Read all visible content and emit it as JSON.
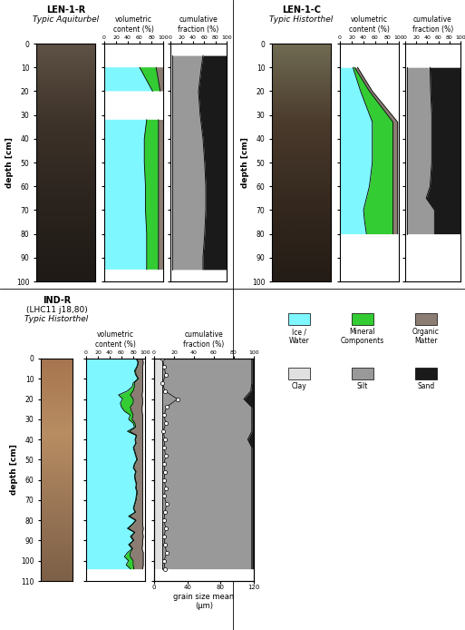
{
  "chart_data": [
    {
      "title": "LEN-1-R",
      "subtitle": [
        "Typic Aquiturbel"
      ],
      "ylabel": "depth [cm]",
      "ylim": [
        100,
        0
      ],
      "yticks": [
        0,
        10,
        20,
        30,
        40,
        50,
        60,
        70,
        80,
        90,
        100
      ],
      "tick_labels": "y",
      "charts": [
        {
          "type": "area",
          "stacked": true,
          "orientation": "horizontal",
          "tick_labels": "x",
          "title": "volumetric content (%)",
          "xlim": [
            0,
            100
          ],
          "xticks": [
            0,
            20,
            40,
            60,
            80,
            100
          ],
          "y": [
            10,
            20,
            26,
            32,
            40,
            50,
            60,
            70,
            80,
            90,
            95
          ],
          "series": [
            {
              "name": "Ice / Water",
              "color": "#7ff7ff",
              "values": [
                60,
                82,
                null,
                72,
                68,
                68,
                70,
                70,
                72,
                72,
                72
              ]
            },
            {
              "name": "Mineral Components",
              "color": "#33cc33",
              "values": [
                28,
                13,
                null,
                20,
                24,
                24,
                22,
                22,
                20,
                20,
                20
              ]
            },
            {
              "name": "Organic Matter",
              "color": "#8b7d74",
              "values": [
                12,
                5,
                null,
                8,
                8,
                8,
                8,
                8,
                8,
                8,
                8
              ]
            }
          ]
        },
        {
          "type": "area",
          "stacked": true,
          "orientation": "horizontal",
          "tick_labels": "x",
          "title": "cumulative fraction (%)",
          "xlim": [
            0,
            100
          ],
          "xticks": [
            0,
            20,
            40,
            60,
            80,
            100
          ],
          "y": [
            5,
            10,
            20,
            30,
            40,
            50,
            60,
            70,
            80,
            90,
            95
          ],
          "series": [
            {
              "name": "Clay",
              "color": "#e0e0e0",
              "values": [
                3,
                3,
                3,
                3,
                3,
                3,
                3,
                3,
                3,
                3,
                3
              ]
            },
            {
              "name": "Silt",
              "color": "#999999",
              "values": [
                55,
                52,
                47,
                50,
                55,
                58,
                60,
                60,
                58,
                55,
                55
              ]
            },
            {
              "name": "Sand",
              "color": "#1a1a1a",
              "values": [
                42,
                45,
                50,
                47,
                42,
                39,
                37,
                37,
                39,
                42,
                42
              ]
            }
          ]
        }
      ]
    },
    {
      "title": "LEN-1-C",
      "subtitle": [
        "Typic Historthel"
      ],
      "ylabel": "depth [cm]",
      "ylim": [
        100,
        0
      ],
      "yticks": [
        0,
        10,
        20,
        30,
        40,
        50,
        60,
        70,
        80,
        90,
        100
      ],
      "tick_labels": "y",
      "charts": [
        {
          "type": "area",
          "stacked": true,
          "orientation": "horizontal",
          "tick_labels": "x",
          "title": "volumetric content (%)",
          "xlim": [
            0,
            100
          ],
          "xticks": [
            0,
            20,
            40,
            60,
            80,
            100
          ],
          "y": [
            10,
            20,
            33,
            40,
            50,
            60,
            70,
            75,
            80
          ],
          "series": [
            {
              "name": "Ice / Water",
              "color": "#7ff7ff",
              "values": [
                22,
                35,
                55,
                55,
                55,
                50,
                40,
                42,
                45
              ]
            },
            {
              "name": "Mineral Components",
              "color": "#33cc33",
              "values": [
                3,
                15,
                35,
                35,
                35,
                40,
                50,
                48,
                45
              ]
            },
            {
              "name": "Organic Matter",
              "color": "#8b7d74",
              "values": [
                5,
                5,
                8,
                8,
                8,
                8,
                8,
                8,
                8
              ]
            }
          ]
        },
        {
          "type": "area",
          "stacked": true,
          "orientation": "horizontal",
          "tick_labels": "x",
          "title": "cumulative fraction (%)",
          "xlim": [
            0,
            100
          ],
          "xticks": [
            0,
            20,
            40,
            60,
            80,
            100
          ],
          "y": [
            10,
            20,
            30,
            40,
            50,
            60,
            65,
            70,
            80
          ],
          "series": [
            {
              "name": "Clay",
              "color": "#e0e0e0",
              "values": [
                3,
                3,
                3,
                3,
                3,
                3,
                3,
                3,
                3
              ]
            },
            {
              "name": "Silt",
              "color": "#999999",
              "values": [
                42,
                43,
                45,
                45,
                45,
                42,
                35,
                50,
                50
              ]
            },
            {
              "name": "Sand",
              "color": "#1a1a1a",
              "values": [
                55,
                54,
                52,
                52,
                52,
                55,
                62,
                47,
                47
              ]
            }
          ]
        }
      ]
    },
    {
      "title": "IND-R",
      "subtitle": [
        "(LHC11 j18,80)",
        "Typic Historthel"
      ],
      "ylabel": "depth [cm]",
      "ylim": [
        110,
        0
      ],
      "yticks": [
        0,
        10,
        20,
        30,
        40,
        50,
        60,
        70,
        80,
        90,
        100,
        110
      ],
      "tick_labels": "y",
      "charts": [
        {
          "type": "area",
          "stacked": true,
          "orientation": "horizontal",
          "tick_labels": "x",
          "title": "volumetric content (%)",
          "xlim": [
            0,
            100
          ],
          "xticks": [
            0,
            20,
            40,
            60,
            80,
            100
          ],
          "y": [
            0,
            2,
            4,
            6,
            8,
            10,
            12,
            14,
            16,
            18,
            20,
            22,
            24,
            26,
            28,
            30,
            32,
            34,
            36,
            38,
            40,
            42,
            44,
            46,
            48,
            50,
            52,
            54,
            56,
            58,
            60,
            62,
            64,
            66,
            68,
            70,
            72,
            74,
            76,
            78,
            80,
            82,
            84,
            86,
            88,
            90,
            92,
            94,
            96,
            98,
            100,
            102,
            104
          ],
          "series": [
            {
              "name": "Ice / Water",
              "color": "#7ff7ff",
              "values": [
                85,
                88,
                86,
                82,
                84,
                88,
                80,
                78,
                70,
                55,
                62,
                58,
                60,
                65,
                75,
                72,
                80,
                82,
                70,
                85,
                83,
                84,
                80,
                82,
                84,
                86,
                82,
                80,
                84,
                82,
                83,
                85,
                84,
                86,
                85,
                84,
                82,
                80,
                83,
                72,
                84,
                78,
                70,
                82,
                75,
                80,
                72,
                78,
                70,
                65,
                72,
                68,
                75
              ]
            },
            {
              "name": "Mineral Components",
              "color": "#33cc33",
              "values": [
                1,
                1,
                1,
                2,
                1,
                1,
                2,
                4,
                10,
                20,
                18,
                22,
                15,
                12,
                5,
                6,
                3,
                2,
                4,
                1,
                1,
                1,
                1,
                1,
                1,
                1,
                1,
                1,
                1,
                1,
                1,
                1,
                1,
                1,
                1,
                1,
                1,
                1,
                1,
                2,
                1,
                1,
                2,
                1,
                2,
                1,
                2,
                1,
                5,
                10,
                8,
                12,
                6
              ]
            },
            {
              "name": "Organic Matter",
              "color": "#8b7d74",
              "values": [
                10,
                8,
                9,
                12,
                11,
                7,
                14,
                14,
                16,
                20,
                16,
                16,
                20,
                18,
                16,
                18,
                13,
                12,
                22,
                10,
                12,
                11,
                15,
                13,
                11,
                9,
                13,
                15,
                11,
                13,
                12,
                10,
                11,
                9,
                10,
                11,
                13,
                15,
                12,
                22,
                11,
                17,
                25,
                13,
                20,
                15,
                22,
                16,
                22,
                22,
                17,
                17,
                15
              ]
            }
          ]
        },
        {
          "type": "area",
          "stacked": true,
          "orientation": "horizontal",
          "tick_labels": "x",
          "title": "cumulative fraction (%)",
          "xlim": [
            0,
            100
          ],
          "xticks": [
            0,
            20,
            40,
            60,
            80,
            100
          ],
          "x2label": "grain size mean (µm)",
          "x2lim": [
            0,
            120
          ],
          "x2ticks": [
            0,
            40,
            80,
            120
          ],
          "y": [
            0,
            4,
            8,
            12,
            16,
            20,
            24,
            28,
            32,
            36,
            40,
            44,
            48,
            52,
            56,
            60,
            64,
            68,
            72,
            76,
            80,
            84,
            88,
            92,
            96,
            100,
            104
          ],
          "series": [
            {
              "name": "Clay",
              "color": "#e0e0e0",
              "values": [
                8,
                8,
                8,
                8,
                8,
                8,
                8,
                8,
                8,
                8,
                8,
                8,
                8,
                8,
                8,
                8,
                8,
                8,
                8,
                8,
                8,
                8,
                8,
                8,
                8,
                8,
                8
              ]
            },
            {
              "name": "Silt",
              "color": "#999999",
              "values": [
                90,
                90,
                90,
                90,
                89,
                82,
                90,
                90,
                90,
                90,
                86,
                90,
                90,
                90,
                90,
                90,
                90,
                90,
                90,
                90,
                90,
                90,
                90,
                90,
                90,
                90,
                90
              ]
            },
            {
              "name": "Sand",
              "color": "#1a1a1a",
              "values": [
                2,
                2,
                2,
                2,
                3,
                10,
                2,
                2,
                2,
                2,
                6,
                2,
                2,
                2,
                2,
                2,
                2,
                2,
                2,
                2,
                2,
                2,
                2,
                2,
                2,
                2,
                2
              ]
            },
            {
              "type": "scatter",
              "axis": "x2",
              "color": "#ffffff",
              "marker": "o",
              "line_style": "solid",
              "values": [
                10,
                12,
                14,
                10,
                13,
                28,
                15,
                12,
                14,
                11,
                13,
                12,
                14,
                12,
                13,
                12,
                14,
                12,
                15,
                13,
                12,
                14,
                12,
                13,
                15,
                12,
                13
              ]
            }
          ]
        }
      ]
    }
  ]
}
